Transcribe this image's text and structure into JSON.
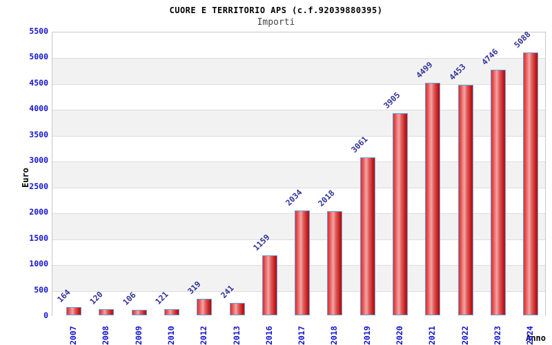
{
  "chart_data": {
    "type": "bar",
    "title": "CUORE E TERRITORIO APS (c.f.92039880395)",
    "subtitle": "Importi",
    "xlabel": "Anno",
    "ylabel": "Euro",
    "categories": [
      "2007",
      "2008",
      "2009",
      "2010",
      "2012",
      "2013",
      "2016",
      "2017",
      "2018",
      "2019",
      "2020",
      "2021",
      "2022",
      "2023",
      "2024"
    ],
    "values": [
      164,
      120,
      106,
      121,
      319,
      241,
      1159,
      2034,
      2018,
      3061,
      3905,
      4499,
      4453,
      4746,
      5088
    ],
    "ylim": [
      0,
      5500
    ],
    "ytick_step": 500,
    "grid": true,
    "legend_position": "none",
    "bar_value_labels_rotation_deg": -45,
    "x_tick_rotation_deg": -90,
    "colors": {
      "bar_fill_main": "#d83232",
      "bar_fill_highlight": "#f2a6a6",
      "bar_fill_dark": "#b31010",
      "bar_border": "#63a3dd",
      "axis_tick_label": "#1414cc",
      "value_label": "#32329b",
      "band_alt": "#f2f2f2",
      "grid_line": "#dcdcdc",
      "plot_border": "#c6c6c6",
      "title_text": "#000000",
      "subtitle_text": "#444444"
    }
  }
}
